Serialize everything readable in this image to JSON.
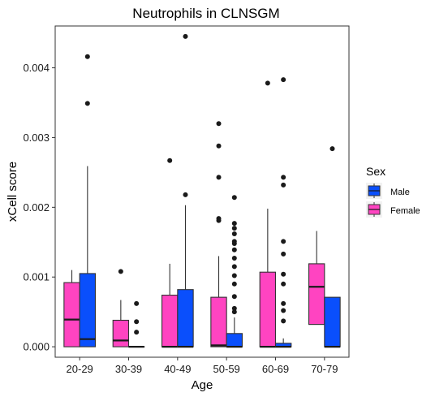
{
  "chart_data": {
    "type": "boxplot",
    "title": "Neutrophils in CLNSGM",
    "xlabel": "Age",
    "ylabel": "xCell score",
    "ylim": [
      -0.00015,
      0.0046
    ],
    "yticks": [
      0.0,
      0.001,
      0.002,
      0.003,
      0.004
    ],
    "ytick_labels": [
      "0.000",
      "0.001",
      "0.002",
      "0.003",
      "0.004"
    ],
    "categories": [
      "20-29",
      "30-39",
      "40-49",
      "50-59",
      "60-69",
      "70-79"
    ],
    "grid": false,
    "legend": {
      "title": "Sex",
      "position": "right",
      "entries": [
        "Male",
        "Female"
      ]
    },
    "series": [
      {
        "name": "Female",
        "color": "#ff44c1",
        "boxes": [
          {
            "q1": 0.0,
            "median": 0.00039,
            "q3": 0.00092,
            "whisker_low": 0.0,
            "whisker_high": 0.0011,
            "outliers": []
          },
          {
            "q1": 0.0,
            "median": 9e-05,
            "q3": 0.00038,
            "whisker_low": 0.0,
            "whisker_high": 0.00067,
            "outliers": [
              0.00108
            ]
          },
          {
            "q1": 0.0,
            "median": 0.0,
            "q3": 0.00074,
            "whisker_low": 0.0,
            "whisker_high": 0.00119,
            "outliers": [
              0.00267
            ]
          },
          {
            "q1": 0.0,
            "median": 2e-05,
            "q3": 0.00071,
            "whisker_low": 0.0,
            "whisker_high": 0.0013,
            "outliers": [
              0.00181,
              0.00184,
              0.00243,
              0.00288,
              0.0032
            ]
          },
          {
            "q1": 0.0,
            "median": 0.0,
            "q3": 0.00107,
            "whisker_low": 0.0,
            "whisker_high": 0.00198,
            "outliers": [
              0.00378
            ]
          },
          {
            "q1": 0.00032,
            "median": 0.00086,
            "q3": 0.00119,
            "whisker_low": 0.00032,
            "whisker_high": 0.00166,
            "outliers": []
          }
        ]
      },
      {
        "name": "Male",
        "color": "#0a4ffc",
        "boxes": [
          {
            "q1": 0.0,
            "median": 0.00011,
            "q3": 0.00105,
            "whisker_low": 0.0,
            "whisker_high": 0.00259,
            "outliers": [
              0.00349,
              0.00416
            ]
          },
          {
            "q1": 0.0,
            "median": 0.0,
            "q3": 0.0,
            "whisker_low": 0.0,
            "whisker_high": 0.0,
            "outliers": [
              0.00021,
              0.00036,
              0.00062
            ]
          },
          {
            "q1": 0.0,
            "median": 0.0,
            "q3": 0.00082,
            "whisker_low": 0.0,
            "whisker_high": 0.00203,
            "outliers": [
              0.00218,
              0.00445
            ]
          },
          {
            "q1": 0.0,
            "median": 0.0,
            "q3": 0.00019,
            "whisker_low": 0.0,
            "whisker_high": 0.00042,
            "outliers": [
              0.0005,
              0.00055,
              0.00072,
              0.0009,
              0.00102,
              0.00115,
              0.00127,
              0.00139,
              0.00148,
              0.00151,
              0.00162,
              0.0017,
              0.00177,
              0.00214
            ]
          },
          {
            "q1": 0.0,
            "median": 0.0,
            "q3": 5e-05,
            "whisker_low": 0.0,
            "whisker_high": 0.00012,
            "outliers": [
              0.00037,
              0.00052,
              0.00062,
              0.0009,
              0.00104,
              0.00133,
              0.00151,
              0.00232,
              0.00243,
              0.00383
            ]
          },
          {
            "q1": 0.0,
            "median": 0.0,
            "q3": 0.00071,
            "whisker_low": 0.0,
            "whisker_high": 0.00071,
            "outliers": [
              0.00284
            ]
          }
        ]
      }
    ]
  }
}
